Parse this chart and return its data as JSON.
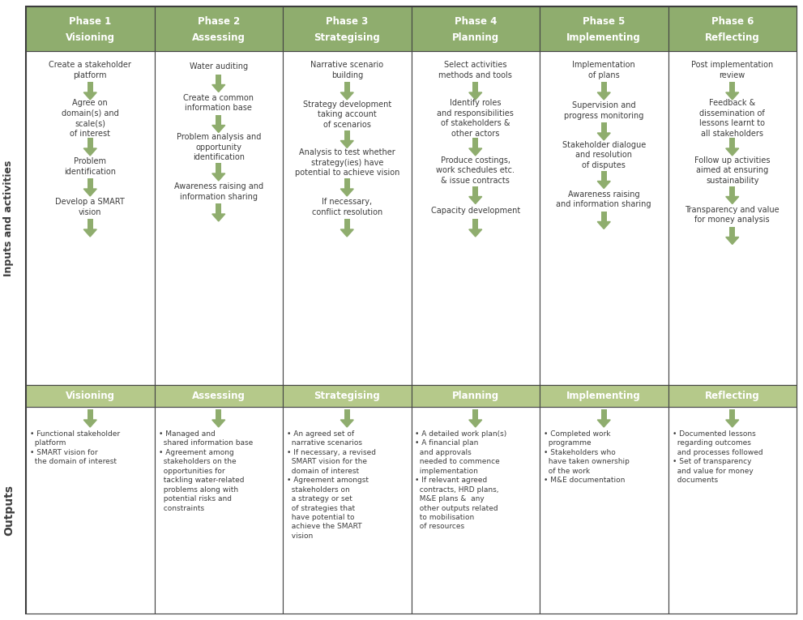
{
  "header_bg": "#8fad6e",
  "header_text_color": "#ffffff",
  "subheader_bg": "#b5c98a",
  "subheader_text_color": "#ffffff",
  "cell_bg": "#ffffff",
  "arrow_color": "#8fad6e",
  "border_color": "#444444",
  "body_text_color": "#3d3d3d",
  "fig_bg": "#ffffff",
  "phases": [
    {
      "line1": "Phase 1",
      "line2": "Visioning"
    },
    {
      "line1": "Phase 2",
      "line2": "Assessing"
    },
    {
      "line1": "Phase 3",
      "line2": "Strategising"
    },
    {
      "line1": "Phase 4",
      "line2": "Planning"
    },
    {
      "line1": "Phase 5",
      "line2": "Implementing"
    },
    {
      "line1": "Phase 6",
      "line2": "Reflecting"
    }
  ],
  "subheaders": [
    "Visioning",
    "Assessing",
    "Strategising",
    "Planning",
    "Implementing",
    "Reflecting"
  ],
  "inputs": [
    [
      "Create a stakeholder\nplatform",
      "Agree on\ndomain(s) and\nscale(s)\nof interest",
      "Problem\nidentification",
      "Develop a SMART\nvision"
    ],
    [
      "Water auditing",
      "Create a common\ninformation base",
      "Problem analysis and\nopportunity\nidentification",
      "Awareness raising and\ninformation sharing"
    ],
    [
      "Narrative scenario\nbuilding",
      "Strategy development\ntaking account\nof scenarios",
      "Analysis to test whether\nstrategy(ies) have\npotential to achieve vision",
      "If necessary,\nconflict resolution"
    ],
    [
      "Select activities\nmethods and tools",
      "Identify roles\nand responsibilities\nof stakeholders &\nother actors",
      "Produce costings,\nwork schedules etc.\n& issue contracts",
      "Capacity development"
    ],
    [
      "Implementation\nof plans",
      "Supervision and\nprogress monitoring",
      "Stakeholder dialogue\nand resolution\nof disputes",
      "Awareness raising\nand information sharing"
    ],
    [
      "Post implementation\nreview",
      "Feedback &\ndissemination of\nlessons learnt to\nall stakeholders",
      "Follow up activities\naimed at ensuring\nsustainability",
      "Transparency and value\nfor money analysis"
    ]
  ],
  "outputs": [
    "• Functional stakeholder\n  platform\n• SMART vision for\n  the domain of interest",
    "• Managed and\n  shared information base\n• Agreement among\n  stakeholders on the\n  opportunities for\n  tackling water-related\n  problems along with\n  potential risks and\n  constraints",
    "• An agreed set of\n  narrative scenarios\n• If necessary, a revised\n  SMART vision for the\n  domain of interest\n• Agreement amongst\n  stakeholders on\n  a strategy or set\n  of strategies that\n  have potential to\n  achieve the SMART\n  vision",
    "• A detailed work plan(s)\n• A financial plan\n  and approvals\n  needed to commence\n  implementation\n• If relevant agreed\n  contracts, HRD plans,\n  M&E plans &  any\n  other outputs related\n  to mobilisation\n  of resources",
    "• Completed work\n  programme\n• Stakeholders who\n  have taken ownership\n  of the work\n• M&E documentation",
    "• Documented lessons\n  regarding outcomes\n  and processes followed\n• Set of transparency\n  and value for money\n  documents"
  ],
  "sidebar_inputs": "Inputs and activities",
  "sidebar_outputs": "Outputs"
}
